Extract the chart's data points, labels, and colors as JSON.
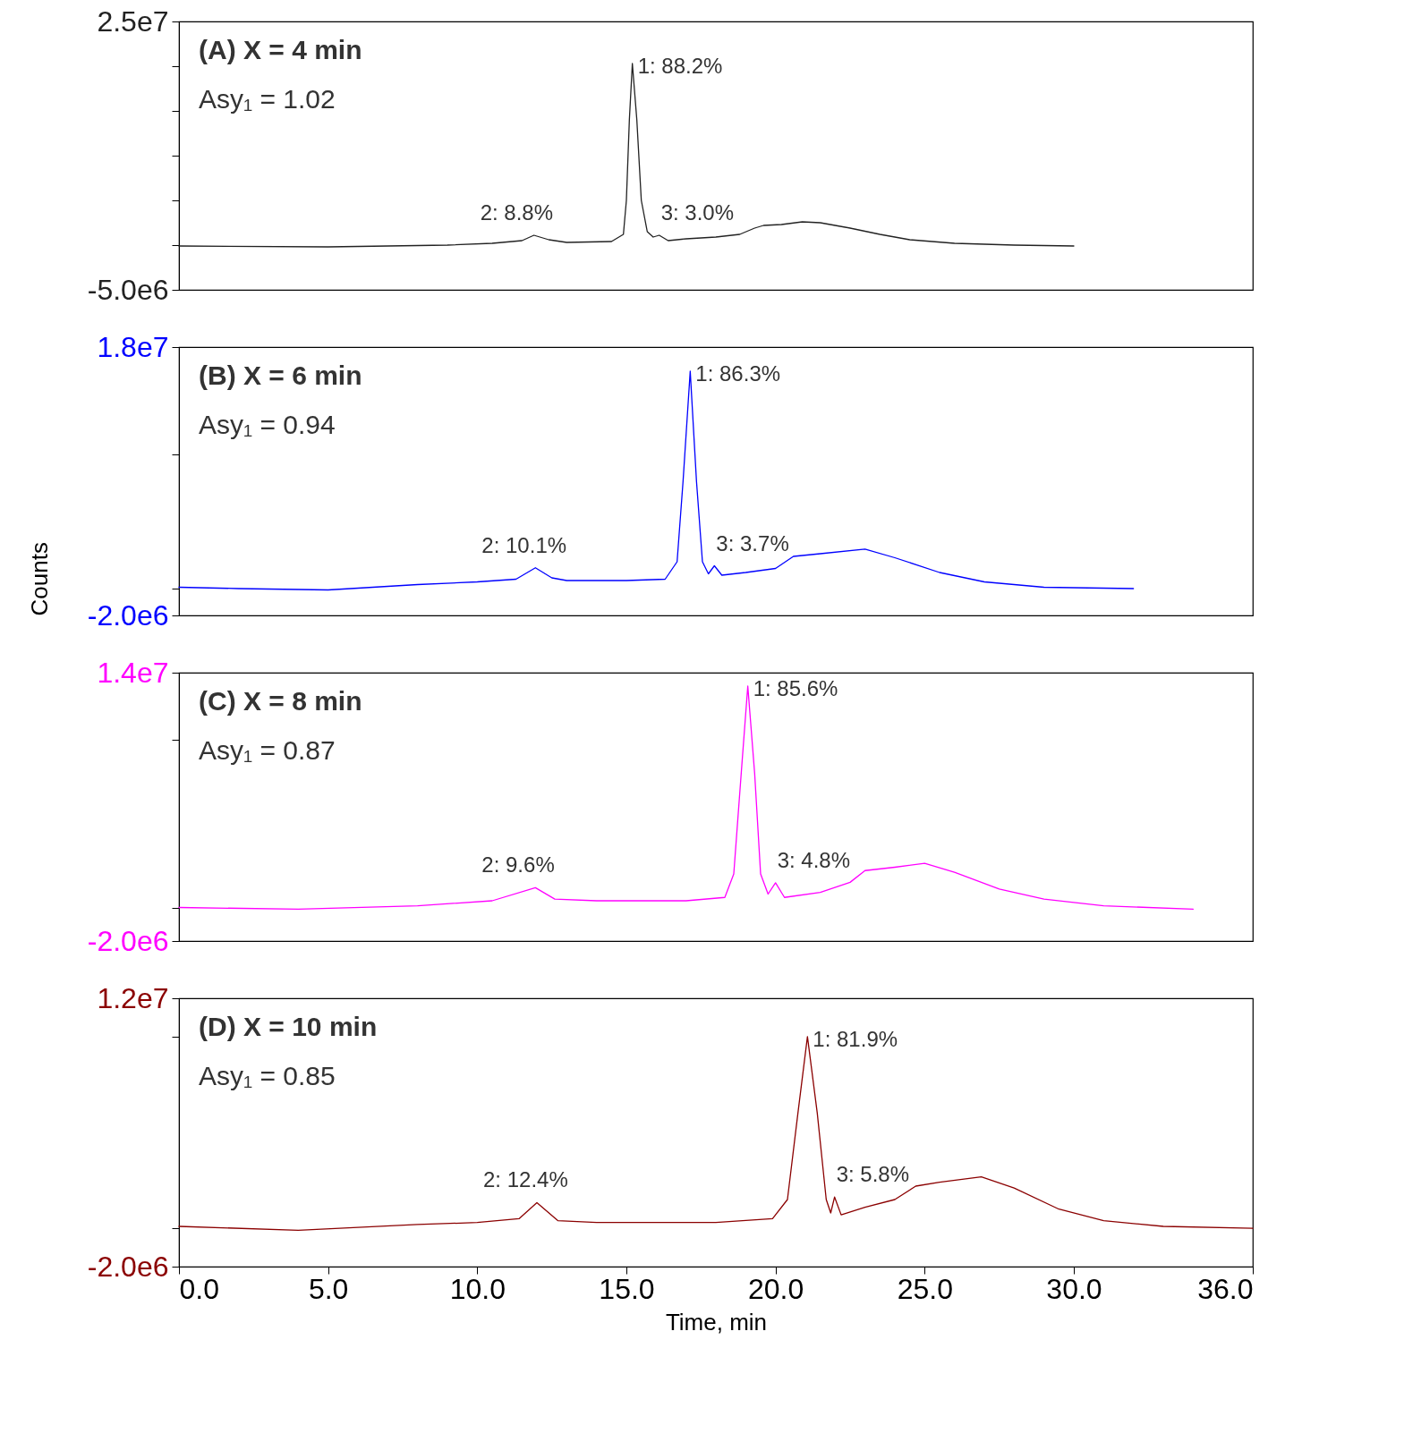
{
  "chart_data": [
    {
      "type": "line",
      "annotations": [
        "(A) X = 4 min",
        "Asy₁ = 1.02",
        {
          "text": "1: 88.2%",
          "x": 15.2,
          "y": 20300000
        },
        {
          "text": "2: 8.8%",
          "x": 11.9,
          "y": 1100000
        },
        {
          "text": "3: 3.0%",
          "x": 16.1,
          "y": 1100000
        }
      ],
      "series": [
        {
          "color": "#222222",
          "x": [
            0,
            5,
            9,
            10.5,
            11.5,
            11.9,
            12.4,
            13,
            14.5,
            14.9,
            15.0,
            15.1,
            15.2,
            15.35,
            15.5,
            15.7,
            15.9,
            16.1,
            16.4,
            17,
            18,
            18.8,
            19.3,
            19.6,
            20.2,
            20.9,
            21.5,
            22.5,
            23.5,
            24.5,
            26,
            28,
            30
          ],
          "values": [
            -100000,
            -200000,
            0,
            200000,
            500000,
            1100000,
            600000,
            300000,
            400000,
            1200000,
            5000000,
            14000000,
            20300000,
            14000000,
            5000000,
            1500000,
            900000,
            1100000,
            500000,
            700000,
            900000,
            1200000,
            1900000,
            2200000,
            2300000,
            2600000,
            2500000,
            1900000,
            1200000,
            600000,
            200000,
            0,
            -100000
          ]
        }
      ],
      "xlim": [
        0,
        36
      ],
      "ylim": [
        -5000000,
        25000000
      ],
      "yticks": [
        {
          "value": 25000000,
          "label": "2.5e7"
        },
        {
          "value": 20000000,
          "label": null
        },
        {
          "value": 15000000,
          "label": null
        },
        {
          "value": 10000000,
          "label": null
        },
        {
          "value": 5000000,
          "label": null
        },
        {
          "value": 0,
          "label": null
        },
        {
          "value": -5000000,
          "label": "-5.0e6"
        }
      ],
      "tick_labels": "y"
    },
    {
      "type": "line",
      "annotations": [
        "(B) X = 6 min",
        "Asy₁ = 0.94",
        {
          "text": "1: 86.3%",
          "x": 17.14,
          "y": 16200000
        },
        {
          "text": "2: 10.1%",
          "x": 11.95,
          "y": 1550000
        },
        {
          "text": "3: 3.7%",
          "x": 17.95,
          "y": 1700000
        }
      ],
      "series": [
        {
          "color": "#0000ff",
          "x": [
            0,
            2,
            5,
            8,
            10,
            11.3,
            11.95,
            12.5,
            13,
            15,
            16.3,
            16.7,
            16.9,
            17.14,
            17.35,
            17.55,
            17.75,
            17.95,
            18.2,
            19,
            20,
            20.6,
            21.5,
            23,
            24,
            25.5,
            27,
            29,
            32
          ],
          "values": [
            100000,
            0,
            -100000,
            300000,
            500000,
            700000,
            1550000,
            800000,
            600000,
            600000,
            700000,
            2000000,
            8000000,
            16200000,
            8000000,
            2000000,
            1100000,
            1700000,
            1000000,
            1200000,
            1500000,
            2400000,
            2600000,
            2940000,
            2300000,
            1200000,
            500000,
            100000,
            0
          ]
        }
      ],
      "xlim": [
        0,
        36
      ],
      "ylim": [
        -2000000,
        18000000
      ],
      "yticks": [
        {
          "value": 18000000,
          "label": "1.8e7"
        },
        {
          "value": 10000000,
          "label": null
        },
        {
          "value": 0,
          "label": null
        },
        {
          "value": -2000000,
          "label": "-2.0e6"
        }
      ],
      "tick_labels": "y",
      "ylabel": "Counts"
    },
    {
      "type": "line",
      "annotations": [
        "(C) X = 8 min",
        "Asy₁ = 0.87",
        {
          "text": "1: 85.6%",
          "x": 19.07,
          "y": 13200000
        },
        {
          "text": "2: 9.6%",
          "x": 11.95,
          "y": 1180000
        },
        {
          "text": "3: 4.8%",
          "x": 20.0,
          "y": 1470000
        }
      ],
      "series": [
        {
          "color": "#ff00ff",
          "x": [
            0,
            4,
            8,
            10.5,
            11.95,
            12.6,
            14,
            17,
            18.3,
            18.6,
            18.85,
            19.07,
            19.3,
            19.5,
            19.75,
            20.0,
            20.3,
            21.5,
            22.5,
            23,
            24,
            25,
            26,
            27.5,
            29,
            31,
            34
          ],
          "values": [
            0,
            -100000,
            100000,
            400000,
            1180000,
            500000,
            400000,
            400000,
            600000,
            2000000,
            8000000,
            13200000,
            8000000,
            2000000,
            800000,
            1470000,
            600000,
            900000,
            1500000,
            2200000,
            2400000,
            2630000,
            2100000,
            1100000,
            500000,
            100000,
            -100000
          ]
        }
      ],
      "xlim": [
        0,
        36
      ],
      "ylim": [
        -2000000,
        14000000
      ],
      "yticks": [
        {
          "value": 14000000,
          "label": "1.4e7"
        },
        {
          "value": 10000000,
          "label": null
        },
        {
          "value": 0,
          "label": null
        },
        {
          "value": -2000000,
          "label": "-2.0e6"
        }
      ],
      "tick_labels": "y"
    },
    {
      "type": "line",
      "annotations": [
        "(D) X = 10 min",
        "Asy₁ = 0.85",
        {
          "text": "1: 81.9%",
          "x": 21.07,
          "y": 10000000
        },
        {
          "text": "2: 12.4%",
          "x": 12.0,
          "y": 1340000
        },
        {
          "text": "3: 5.8%",
          "x": 21.98,
          "y": 1630000
        }
      ],
      "series": [
        {
          "color": "#8b0000",
          "x": [
            0,
            4,
            8,
            10,
            11.4,
            12,
            12.7,
            14,
            18,
            19.9,
            20.4,
            20.75,
            21.07,
            21.4,
            21.7,
            21.85,
            21.98,
            22.2,
            23,
            24,
            24.7,
            25.5,
            26.9,
            28,
            29.5,
            31,
            33,
            36
          ],
          "values": [
            100000,
            -100000,
            200000,
            300000,
            500000,
            1340000,
            400000,
            300000,
            300000,
            500000,
            1500000,
            6000000,
            10000000,
            6000000,
            1500000,
            800000,
            1630000,
            700000,
            1100000,
            1500000,
            2200000,
            2400000,
            2680000,
            2100000,
            1000000,
            400000,
            100000,
            0
          ]
        }
      ],
      "xlim": [
        0,
        36
      ],
      "xticks": [
        {
          "value": 0,
          "label": "0.0"
        },
        {
          "value": 5,
          "label": "5.0"
        },
        {
          "value": 10,
          "label": "10.0"
        },
        {
          "value": 15,
          "label": "15.0"
        },
        {
          "value": 20,
          "label": "20.0"
        },
        {
          "value": 25,
          "label": "25.0"
        },
        {
          "value": 30,
          "label": "30.0"
        },
        {
          "value": 36,
          "label": "36.0"
        }
      ],
      "xlabel": "Time, min",
      "ylim": [
        -2000000,
        12000000
      ],
      "yticks": [
        {
          "value": 12000000,
          "label": "1.2e7"
        },
        {
          "value": 10000000,
          "label": null
        },
        {
          "value": 0,
          "label": null
        },
        {
          "value": -2000000,
          "label": "-2.0e6"
        }
      ]
    }
  ]
}
